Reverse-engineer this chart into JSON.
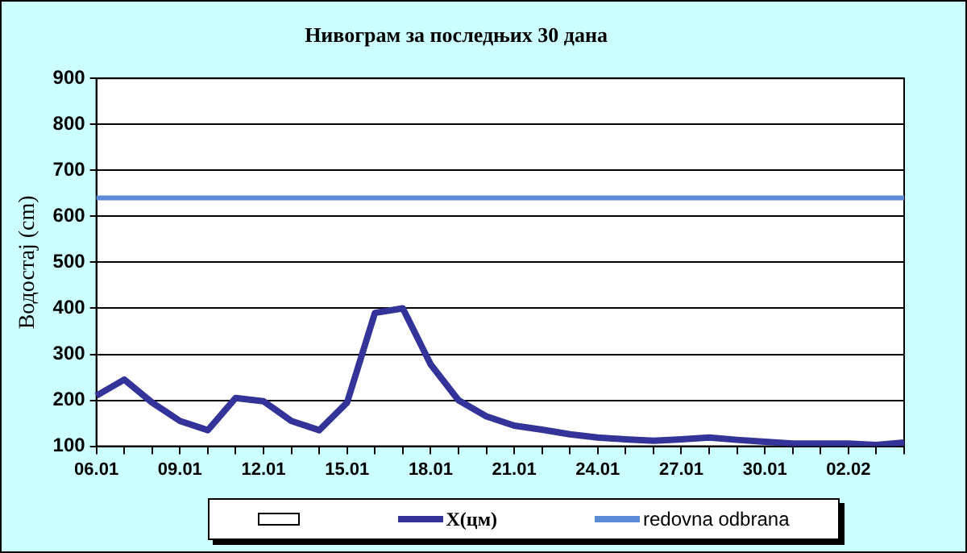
{
  "chart_data": {
    "type": "line",
    "title": "Нивограм за последњих 30 дана",
    "ylabel": "Водостај (cm)",
    "categories": [
      "06.01",
      null,
      null,
      "09.01",
      null,
      null,
      "12.01",
      null,
      null,
      "15.01",
      null,
      null,
      "18.01",
      null,
      null,
      "21.01",
      null,
      null,
      "24.01",
      null,
      null,
      "27.01",
      null,
      null,
      "30.01",
      null,
      null,
      "02.02",
      null,
      null
    ],
    "series": [
      {
        "name": "X(цм)",
        "color": "#333399",
        "values": [
          210,
          245,
          195,
          155,
          135,
          205,
          198,
          155,
          135,
          195,
          390,
          400,
          278,
          200,
          165,
          145,
          136,
          126,
          119,
          115,
          112,
          115,
          119,
          114,
          110,
          106,
          106,
          106,
          103,
          108
        ]
      }
    ],
    "ref_lines": [
      {
        "axis": "y",
        "value": 640,
        "label": "redovna odbrana",
        "color": "#5b8bd6"
      }
    ],
    "ylim": [
      100,
      900
    ],
    "yticks": [
      100,
      200,
      300,
      400,
      500,
      600,
      700,
      800,
      900
    ],
    "grid": "y",
    "legend": "bottom",
    "marker": "none",
    "line_style": "solid"
  }
}
